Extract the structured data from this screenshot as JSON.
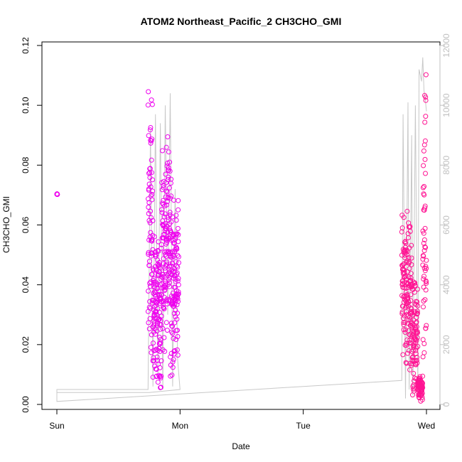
{
  "chart_data": {
    "type": "scatter",
    "title": "ATOM2 Northeast_Pacific_2 CH3CHO_GMI",
    "xlabel": "Date",
    "ylabel": "CH3CHO_GMI",
    "x_ticks": [
      {
        "day": 0,
        "label": "Sun"
      },
      {
        "day": 1,
        "label": "Mon"
      },
      {
        "day": 2,
        "label": "Tue"
      },
      {
        "day": 3,
        "label": "Wed"
      }
    ],
    "xlim": [
      0,
      3.03
    ],
    "ylim": [
      0,
      0.12
    ],
    "y_ticks": [
      0.0,
      0.02,
      0.04,
      0.06,
      0.08,
      0.1,
      0.12
    ],
    "y_tick_labels": [
      "0.00",
      "0.02",
      "0.04",
      "0.06",
      "0.08",
      "0.10",
      "0.12"
    ],
    "y2_ticks": [
      0,
      2000,
      4000,
      6000,
      8000,
      10000,
      12000
    ],
    "y2_tick_labels": [
      "0",
      "2000",
      "4000",
      "6000",
      "8000",
      "10000",
      "12000"
    ],
    "y2lim": [
      0,
      12000
    ],
    "colors": {
      "series1": "#ee00ee",
      "series2": "#ff1493",
      "altitude": "#c8c8c8",
      "axis": "#000000",
      "axis2": "#c0c0c0"
    },
    "series": [
      {
        "role": "scatter",
        "color": "#ee00ee",
        "segments": [
          {
            "d0": 0.0,
            "d1": 0.005,
            "lo": 0.07,
            "hi": 0.0705
          },
          {
            "d0": 0.74,
            "d1": 0.78,
            "lo": 0.002,
            "hi": 0.116
          },
          {
            "d0": 0.78,
            "d1": 0.85,
            "lo": 0.002,
            "hi": 0.06
          },
          {
            "d0": 0.85,
            "d1": 0.88,
            "lo": 0.01,
            "hi": 0.09
          },
          {
            "d0": 0.88,
            "d1": 0.92,
            "lo": 0.015,
            "hi": 0.091
          },
          {
            "d0": 0.92,
            "d1": 0.95,
            "lo": 0.001,
            "hi": 0.085
          },
          {
            "d0": 0.95,
            "d1": 0.99,
            "lo": 0.015,
            "hi": 0.07
          }
        ]
      },
      {
        "role": "scatter",
        "color": "#ff1493",
        "segments": [
          {
            "d0": 2.8,
            "d1": 2.83,
            "lo": 0.012,
            "hi": 0.069
          },
          {
            "d0": 2.83,
            "d1": 2.88,
            "lo": 0.008,
            "hi": 0.067
          },
          {
            "d0": 2.88,
            "d1": 2.93,
            "lo": 0.001,
            "hi": 0.045
          },
          {
            "d0": 2.93,
            "d1": 2.97,
            "lo": 0.001,
            "hi": 0.01
          },
          {
            "d0": 2.97,
            "d1": 3.0,
            "lo": 0.002,
            "hi": 0.116
          }
        ]
      },
      {
        "role": "altitude-line",
        "axis": "y2",
        "color": "#c8c8c8",
        "x": [
          0.0,
          0.0,
          0.74,
          0.76,
          0.78,
          0.8,
          0.82,
          0.84,
          0.86,
          0.88,
          0.9,
          0.92,
          0.94,
          0.96,
          0.98,
          1.0,
          0.75,
          0.0,
          0.0,
          2.8,
          2.81,
          2.83,
          2.85,
          2.86,
          2.88,
          2.89,
          2.91,
          2.93,
          2.94,
          2.96,
          2.97,
          2.98,
          2.99,
          3.0
        ],
        "y": [
          100,
          500,
          500,
          9200,
          600,
          9700,
          1000,
          9400,
          500,
          10000,
          3000,
          10400,
          600,
          7200,
          1500,
          500,
          400,
          400,
          100,
          800,
          9700,
          200,
          10100,
          500,
          9000,
          300,
          10000,
          500,
          11200,
          10800,
          11600,
          10500,
          10200,
          9800
        ]
      }
    ]
  }
}
